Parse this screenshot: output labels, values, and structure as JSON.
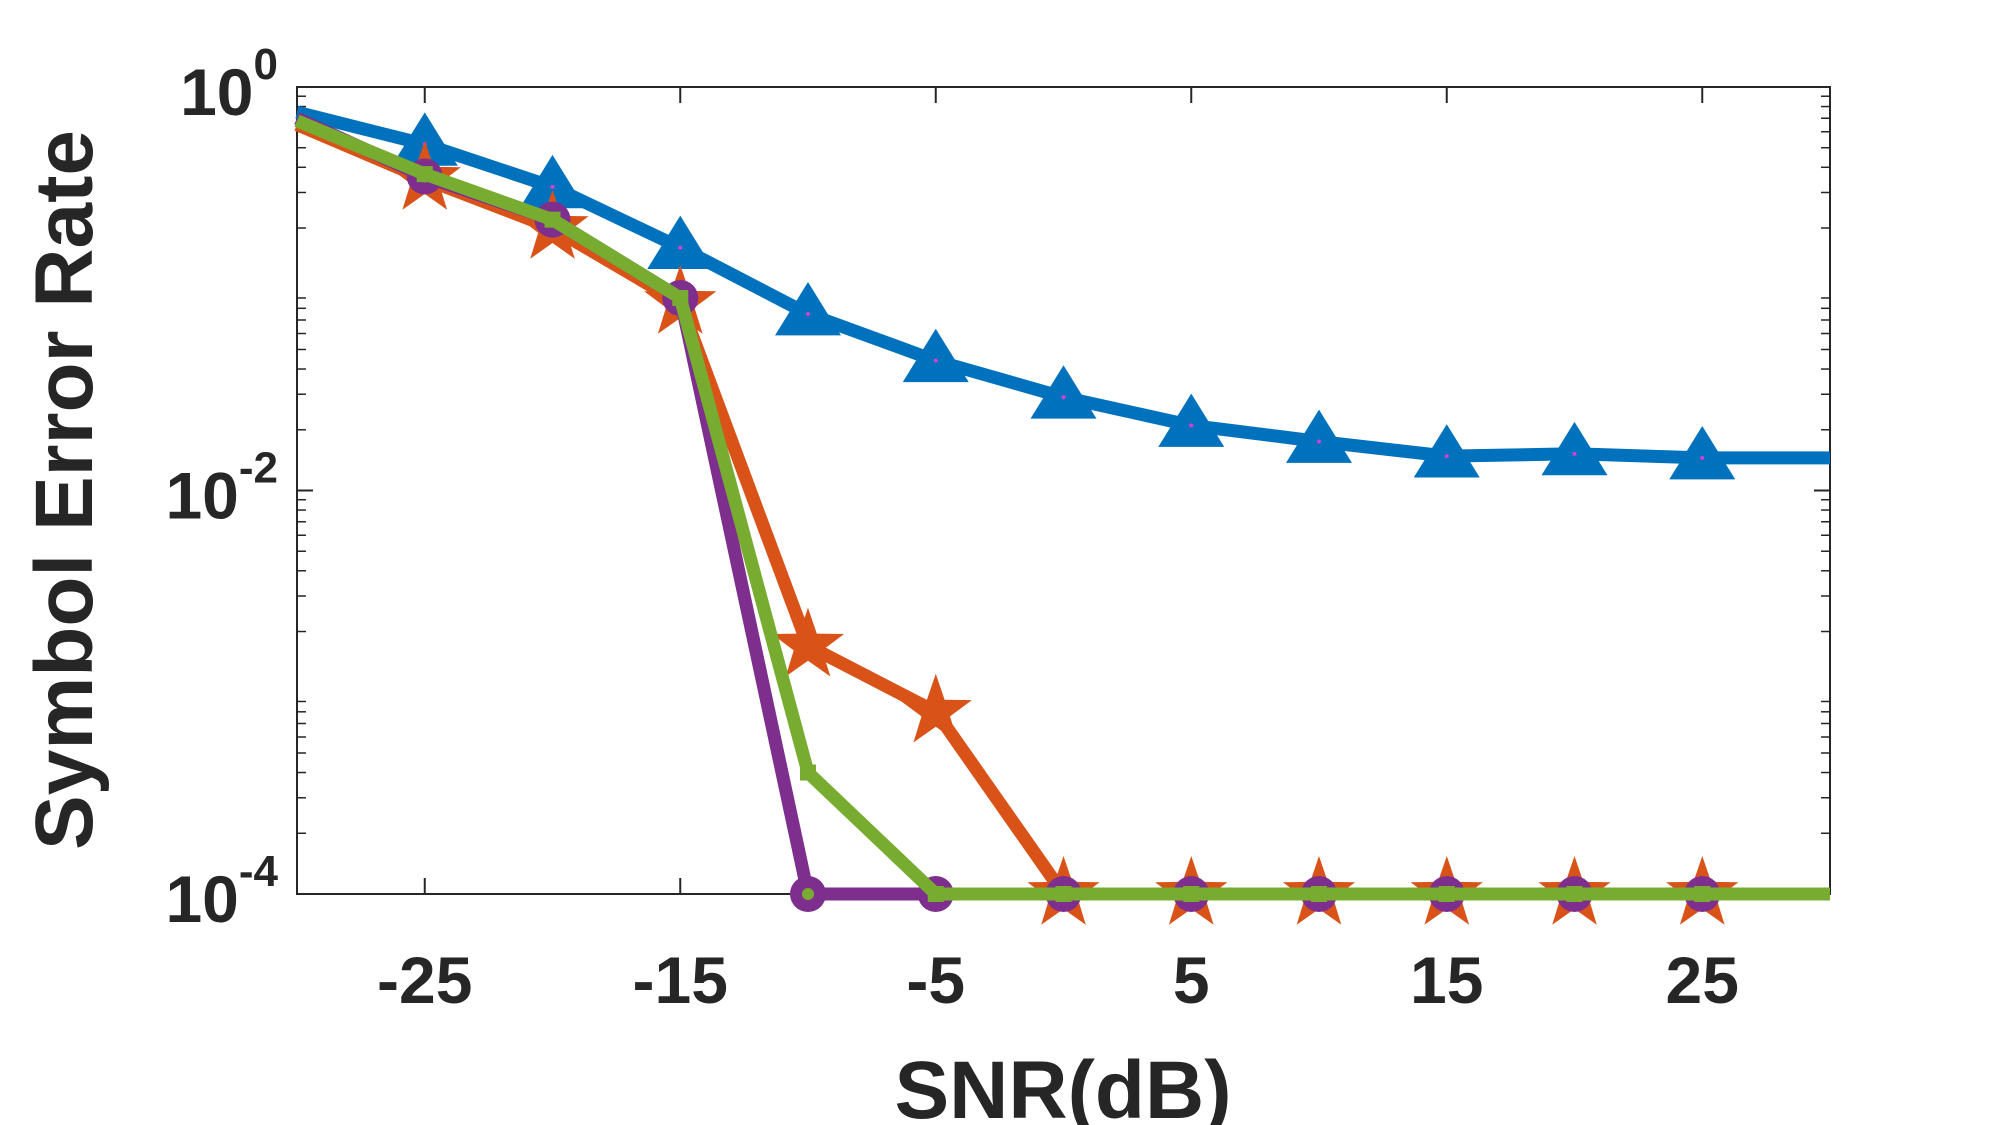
{
  "chart_data": {
    "type": "line",
    "xlabel": "SNR(dB)",
    "ylabel": "Symbol Error Rate",
    "xlim": [
      -30,
      30
    ],
    "ylim": [
      0.0001,
      1
    ],
    "yscale": "log",
    "grid": false,
    "legend": "none",
    "x": [
      -30,
      -25,
      -20,
      -15,
      -10,
      -5,
      0,
      5,
      10,
      15,
      20,
      25,
      30
    ],
    "xticks": [
      -25,
      -15,
      -5,
      5,
      15,
      25
    ],
    "xtick_labels": [
      "-25",
      "-15",
      "-5",
      "5",
      "15",
      "25"
    ],
    "yticks": [
      {
        "value": 0.0001,
        "base": "10",
        "exp": "-4"
      },
      {
        "value": 0.01,
        "base": "10",
        "exp": "-2"
      },
      {
        "value": 1,
        "base": "10",
        "exp": "0"
      }
    ],
    "series": [
      {
        "color": "#0072BD",
        "marker": "triangle",
        "values": [
          0.75,
          0.52,
          0.32,
          0.16,
          0.075,
          0.044,
          0.029,
          0.021,
          0.0175,
          0.0148,
          0.0152,
          0.0145,
          0.0145
        ]
      },
      {
        "color": "#D95319",
        "marker": "star",
        "values": [
          0.65,
          0.35,
          0.2,
          0.085,
          0.0017,
          0.0008,
          0.0001,
          0.0001,
          0.0001,
          0.0001,
          0.0001,
          0.0001,
          0.0001
        ]
      },
      {
        "color": "#7E2F8E",
        "marker": "circle",
        "values": [
          0.7,
          0.36,
          0.22,
          0.09,
          0.0001,
          0.0001,
          0.0001,
          0.0001,
          0.0001,
          0.0001,
          0.0001,
          0.0001,
          0.0001
        ]
      },
      {
        "color": "#77AC30",
        "marker": "square",
        "values": [
          0.68,
          0.37,
          0.22,
          0.09,
          0.0004,
          0.0001,
          0.0001,
          0.0001,
          0.0001,
          0.0001,
          0.0001,
          0.0001,
          0.0001
        ]
      }
    ]
  }
}
